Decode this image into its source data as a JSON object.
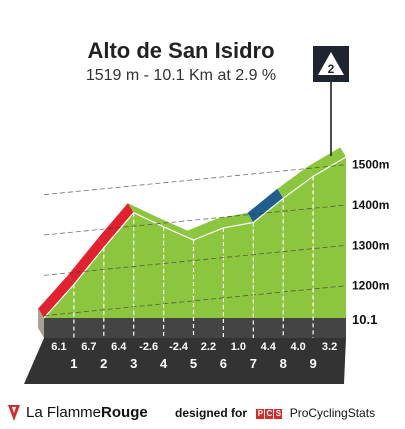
{
  "header": {
    "title": "Alto de San Isidro",
    "subtitle": "1519 m - 10.1 Km at 2.9 %",
    "category": "2"
  },
  "footer": {
    "brand_prefix": "La Flamme",
    "brand_bold": "Rouge",
    "designed_for": "designed for",
    "pcs_letters": [
      "P",
      "C",
      "S"
    ],
    "pcs_name": "ProCyclingStats"
  },
  "colors": {
    "green": "#8cc63f",
    "red": "#e2212e",
    "blue": "#1f5e8f",
    "base": "#333333",
    "earth": "#a8a191"
  },
  "chart_data": {
    "type": "area",
    "xlabel": "",
    "ylabel": "",
    "distance_label": "10.1",
    "y_ticks": [
      {
        "value": 1200,
        "label": "1200m"
      },
      {
        "value": 1300,
        "label": "1300m"
      },
      {
        "value": 1400,
        "label": "1400m"
      },
      {
        "value": 1500,
        "label": "1500m"
      }
    ],
    "ylim": [
      1120,
      1519
    ],
    "xlim": [
      0,
      10.1
    ],
    "km_labels": [
      "1",
      "2",
      "3",
      "4",
      "5",
      "6",
      "7",
      "8",
      "9"
    ],
    "segments": [
      {
        "start_km": 0,
        "end_km": 1,
        "gradient": 6.1,
        "gradient_label": "6.1",
        "color": "red"
      },
      {
        "start_km": 1,
        "end_km": 2,
        "gradient": 6.7,
        "gradient_label": "6.7",
        "color": "red"
      },
      {
        "start_km": 2,
        "end_km": 3,
        "gradient": 6.4,
        "gradient_label": "6.4",
        "color": "red"
      },
      {
        "start_km": 3,
        "end_km": 4,
        "gradient": -2.6,
        "gradient_label": "-2.6",
        "color": "green"
      },
      {
        "start_km": 4,
        "end_km": 5,
        "gradient": -2.4,
        "gradient_label": "-2.4",
        "color": "green"
      },
      {
        "start_km": 5,
        "end_km": 6,
        "gradient": 2.2,
        "gradient_label": "2.2",
        "color": "green"
      },
      {
        "start_km": 6,
        "end_km": 7,
        "gradient": 1.0,
        "gradient_label": "1.0",
        "color": "green"
      },
      {
        "start_km": 7,
        "end_km": 8,
        "gradient": 4.4,
        "gradient_label": "4.4",
        "color": "blue"
      },
      {
        "start_km": 8,
        "end_km": 9,
        "gradient": 4.0,
        "gradient_label": "4.0",
        "color": "green"
      },
      {
        "start_km": 9,
        "end_km": 10.1,
        "gradient": 3.2,
        "gradient_label": "3.2",
        "color": "green"
      }
    ]
  }
}
